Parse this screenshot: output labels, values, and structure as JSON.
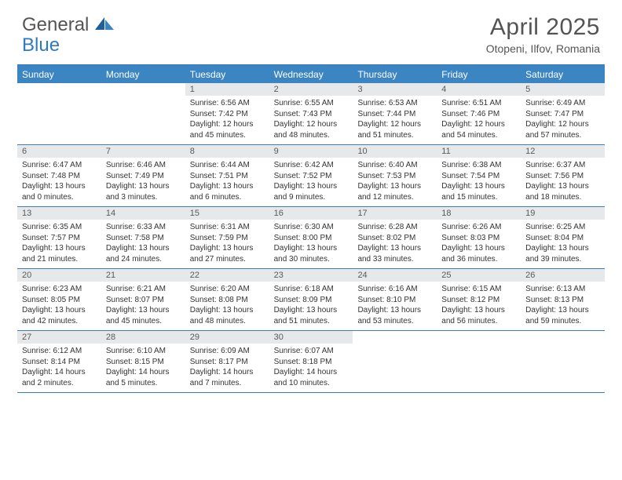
{
  "logo": {
    "general": "General",
    "blue": "Blue"
  },
  "title": "April 2025",
  "location": "Otopeni, Ilfov, Romania",
  "colors": {
    "header_bar": "#3b85c3",
    "border": "#3a7fbf",
    "daynum_bg": "#e7e8e9",
    "text": "#333333",
    "title_text": "#545454"
  },
  "weekdays": [
    "Sunday",
    "Monday",
    "Tuesday",
    "Wednesday",
    "Thursday",
    "Friday",
    "Saturday"
  ],
  "weeks": [
    [
      {
        "empty": true
      },
      {
        "empty": true
      },
      {
        "num": "1",
        "sunrise": "Sunrise: 6:56 AM",
        "sunset": "Sunset: 7:42 PM",
        "day1": "Daylight: 12 hours",
        "day2": "and 45 minutes."
      },
      {
        "num": "2",
        "sunrise": "Sunrise: 6:55 AM",
        "sunset": "Sunset: 7:43 PM",
        "day1": "Daylight: 12 hours",
        "day2": "and 48 minutes."
      },
      {
        "num": "3",
        "sunrise": "Sunrise: 6:53 AM",
        "sunset": "Sunset: 7:44 PM",
        "day1": "Daylight: 12 hours",
        "day2": "and 51 minutes."
      },
      {
        "num": "4",
        "sunrise": "Sunrise: 6:51 AM",
        "sunset": "Sunset: 7:46 PM",
        "day1": "Daylight: 12 hours",
        "day2": "and 54 minutes."
      },
      {
        "num": "5",
        "sunrise": "Sunrise: 6:49 AM",
        "sunset": "Sunset: 7:47 PM",
        "day1": "Daylight: 12 hours",
        "day2": "and 57 minutes."
      }
    ],
    [
      {
        "num": "6",
        "sunrise": "Sunrise: 6:47 AM",
        "sunset": "Sunset: 7:48 PM",
        "day1": "Daylight: 13 hours",
        "day2": "and 0 minutes."
      },
      {
        "num": "7",
        "sunrise": "Sunrise: 6:46 AM",
        "sunset": "Sunset: 7:49 PM",
        "day1": "Daylight: 13 hours",
        "day2": "and 3 minutes."
      },
      {
        "num": "8",
        "sunrise": "Sunrise: 6:44 AM",
        "sunset": "Sunset: 7:51 PM",
        "day1": "Daylight: 13 hours",
        "day2": "and 6 minutes."
      },
      {
        "num": "9",
        "sunrise": "Sunrise: 6:42 AM",
        "sunset": "Sunset: 7:52 PM",
        "day1": "Daylight: 13 hours",
        "day2": "and 9 minutes."
      },
      {
        "num": "10",
        "sunrise": "Sunrise: 6:40 AM",
        "sunset": "Sunset: 7:53 PM",
        "day1": "Daylight: 13 hours",
        "day2": "and 12 minutes."
      },
      {
        "num": "11",
        "sunrise": "Sunrise: 6:38 AM",
        "sunset": "Sunset: 7:54 PM",
        "day1": "Daylight: 13 hours",
        "day2": "and 15 minutes."
      },
      {
        "num": "12",
        "sunrise": "Sunrise: 6:37 AM",
        "sunset": "Sunset: 7:56 PM",
        "day1": "Daylight: 13 hours",
        "day2": "and 18 minutes."
      }
    ],
    [
      {
        "num": "13",
        "sunrise": "Sunrise: 6:35 AM",
        "sunset": "Sunset: 7:57 PM",
        "day1": "Daylight: 13 hours",
        "day2": "and 21 minutes."
      },
      {
        "num": "14",
        "sunrise": "Sunrise: 6:33 AM",
        "sunset": "Sunset: 7:58 PM",
        "day1": "Daylight: 13 hours",
        "day2": "and 24 minutes."
      },
      {
        "num": "15",
        "sunrise": "Sunrise: 6:31 AM",
        "sunset": "Sunset: 7:59 PM",
        "day1": "Daylight: 13 hours",
        "day2": "and 27 minutes."
      },
      {
        "num": "16",
        "sunrise": "Sunrise: 6:30 AM",
        "sunset": "Sunset: 8:00 PM",
        "day1": "Daylight: 13 hours",
        "day2": "and 30 minutes."
      },
      {
        "num": "17",
        "sunrise": "Sunrise: 6:28 AM",
        "sunset": "Sunset: 8:02 PM",
        "day1": "Daylight: 13 hours",
        "day2": "and 33 minutes."
      },
      {
        "num": "18",
        "sunrise": "Sunrise: 6:26 AM",
        "sunset": "Sunset: 8:03 PM",
        "day1": "Daylight: 13 hours",
        "day2": "and 36 minutes."
      },
      {
        "num": "19",
        "sunrise": "Sunrise: 6:25 AM",
        "sunset": "Sunset: 8:04 PM",
        "day1": "Daylight: 13 hours",
        "day2": "and 39 minutes."
      }
    ],
    [
      {
        "num": "20",
        "sunrise": "Sunrise: 6:23 AM",
        "sunset": "Sunset: 8:05 PM",
        "day1": "Daylight: 13 hours",
        "day2": "and 42 minutes."
      },
      {
        "num": "21",
        "sunrise": "Sunrise: 6:21 AM",
        "sunset": "Sunset: 8:07 PM",
        "day1": "Daylight: 13 hours",
        "day2": "and 45 minutes."
      },
      {
        "num": "22",
        "sunrise": "Sunrise: 6:20 AM",
        "sunset": "Sunset: 8:08 PM",
        "day1": "Daylight: 13 hours",
        "day2": "and 48 minutes."
      },
      {
        "num": "23",
        "sunrise": "Sunrise: 6:18 AM",
        "sunset": "Sunset: 8:09 PM",
        "day1": "Daylight: 13 hours",
        "day2": "and 51 minutes."
      },
      {
        "num": "24",
        "sunrise": "Sunrise: 6:16 AM",
        "sunset": "Sunset: 8:10 PM",
        "day1": "Daylight: 13 hours",
        "day2": "and 53 minutes."
      },
      {
        "num": "25",
        "sunrise": "Sunrise: 6:15 AM",
        "sunset": "Sunset: 8:12 PM",
        "day1": "Daylight: 13 hours",
        "day2": "and 56 minutes."
      },
      {
        "num": "26",
        "sunrise": "Sunrise: 6:13 AM",
        "sunset": "Sunset: 8:13 PM",
        "day1": "Daylight: 13 hours",
        "day2": "and 59 minutes."
      }
    ],
    [
      {
        "num": "27",
        "sunrise": "Sunrise: 6:12 AM",
        "sunset": "Sunset: 8:14 PM",
        "day1": "Daylight: 14 hours",
        "day2": "and 2 minutes."
      },
      {
        "num": "28",
        "sunrise": "Sunrise: 6:10 AM",
        "sunset": "Sunset: 8:15 PM",
        "day1": "Daylight: 14 hours",
        "day2": "and 5 minutes."
      },
      {
        "num": "29",
        "sunrise": "Sunrise: 6:09 AM",
        "sunset": "Sunset: 8:17 PM",
        "day1": "Daylight: 14 hours",
        "day2": "and 7 minutes."
      },
      {
        "num": "30",
        "sunrise": "Sunrise: 6:07 AM",
        "sunset": "Sunset: 8:18 PM",
        "day1": "Daylight: 14 hours",
        "day2": "and 10 minutes."
      },
      {
        "empty": true
      },
      {
        "empty": true
      },
      {
        "empty": true
      }
    ]
  ]
}
